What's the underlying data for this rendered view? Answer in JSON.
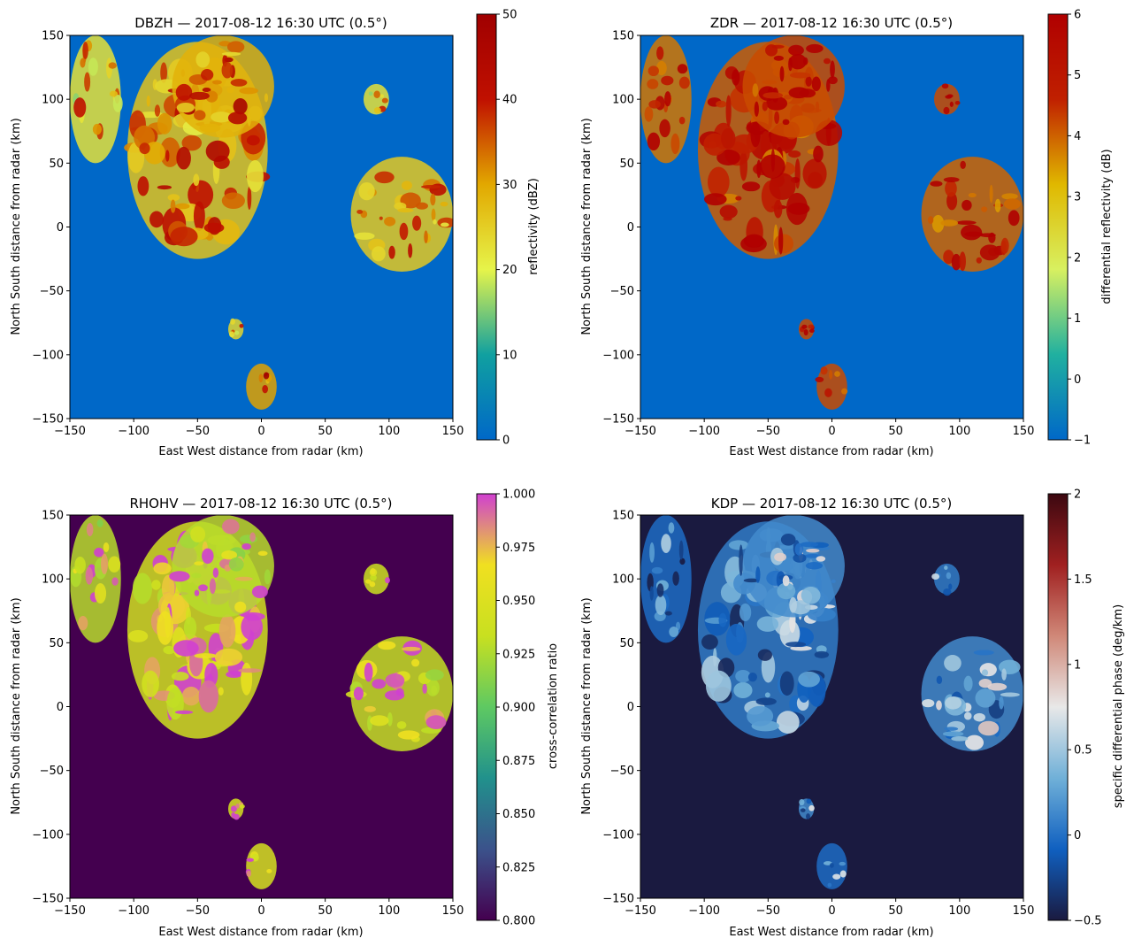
{
  "figure": {
    "background": "#ffffff"
  },
  "chart_data": [
    {
      "type": "heatmap",
      "field": "DBZH",
      "title": "DBZH — 2017-08-12 16:30 UTC (0.5°)",
      "xlabel": "East West distance from radar (km)",
      "ylabel": "North South distance from radar (km)",
      "xlim": [
        -150,
        150
      ],
      "ylim": [
        -150,
        150
      ],
      "xticks": [
        -150,
        -100,
        -50,
        0,
        50,
        100,
        150
      ],
      "yticks": [
        -150,
        -100,
        -50,
        0,
        50,
        100,
        150
      ],
      "colorbar": {
        "label": "reflectivity (dBZ)",
        "range": [
          0,
          50
        ],
        "ticks": [
          0,
          10,
          20,
          30,
          40,
          50
        ],
        "colors": [
          "#0068c8",
          "#10a0a0",
          "#e6f44a",
          "#e2a800",
          "#c01000",
          "#a00000"
        ]
      },
      "background_color": "#0068c8",
      "echoes": [
        {
          "x": -50,
          "y": 60,
          "rx": 55,
          "ry": 85,
          "value": 33
        },
        {
          "x": -30,
          "y": 110,
          "rx": 40,
          "ry": 40,
          "value": 36
        },
        {
          "x": -130,
          "y": 100,
          "rx": 20,
          "ry": 50,
          "value": 28
        },
        {
          "x": 110,
          "y": 10,
          "rx": 40,
          "ry": 45,
          "value": 32
        },
        {
          "x": 0,
          "y": -125,
          "rx": 12,
          "ry": 18,
          "value": 38
        },
        {
          "x": -20,
          "y": -80,
          "rx": 6,
          "ry": 8,
          "value": 30
        },
        {
          "x": 90,
          "y": 100,
          "rx": 10,
          "ry": 12,
          "value": 28
        }
      ]
    },
    {
      "type": "heatmap",
      "field": "ZDR",
      "title": "ZDR — 2017-08-12 16:30 UTC (0.5°)",
      "xlabel": "East West distance from radar (km)",
      "ylabel": "North South distance from radar (km)",
      "xlim": [
        -150,
        150
      ],
      "ylim": [
        -150,
        150
      ],
      "xticks": [
        -150,
        -100,
        -50,
        0,
        50,
        100,
        150
      ],
      "yticks": [
        -150,
        -100,
        -50,
        0,
        50,
        100,
        150
      ],
      "colorbar": {
        "label": "differential reflectivity (dB)",
        "range": [
          -1,
          6
        ],
        "ticks": [
          -1,
          0,
          1,
          2,
          3,
          4,
          5,
          6
        ],
        "colors": [
          "#0068c8",
          "#20b0a0",
          "#d8f060",
          "#e0b800",
          "#c02000",
          "#b00000"
        ]
      },
      "background_color": "#0068c8",
      "echoes": [
        {
          "x": -50,
          "y": 60,
          "rx": 55,
          "ry": 85,
          "value": 5.3
        },
        {
          "x": -30,
          "y": 110,
          "rx": 40,
          "ry": 40,
          "value": 5.5
        },
        {
          "x": -130,
          "y": 100,
          "rx": 20,
          "ry": 50,
          "value": 5.0
        },
        {
          "x": 110,
          "y": 10,
          "rx": 40,
          "ry": 45,
          "value": 5.2
        },
        {
          "x": 0,
          "y": -125,
          "rx": 12,
          "ry": 18,
          "value": 5.5
        },
        {
          "x": -20,
          "y": -80,
          "rx": 6,
          "ry": 8,
          "value": 5.5
        },
        {
          "x": 90,
          "y": 100,
          "rx": 10,
          "ry": 12,
          "value": 5.5
        }
      ]
    },
    {
      "type": "heatmap",
      "field": "RHOHV",
      "title": "RHOHV — 2017-08-12 16:30 UTC (0.5°)",
      "xlabel": "East West distance from radar (km)",
      "ylabel": "North South distance from radar (km)",
      "xlim": [
        -150,
        150
      ],
      "ylim": [
        -150,
        150
      ],
      "xticks": [
        -150,
        -100,
        -50,
        0,
        50,
        100,
        150
      ],
      "yticks": [
        -150,
        -100,
        -50,
        0,
        50,
        100,
        150
      ],
      "colorbar": {
        "label": "cross-correlation ratio",
        "range": [
          0.8,
          1.0
        ],
        "ticks": [
          0.8,
          0.825,
          0.85,
          0.875,
          0.9,
          0.925,
          0.95,
          0.975,
          1.0
        ],
        "tick_labels": [
          "0.800",
          "0.825",
          "0.850",
          "0.875",
          "0.900",
          "0.925",
          "0.950",
          "0.975",
          "1.000"
        ],
        "colors": [
          "#44004f",
          "#3b528b",
          "#21918c",
          "#5ec962",
          "#c8e020",
          "#f0e020",
          "#d040d0"
        ]
      },
      "background_color": "#44004f",
      "echoes": [
        {
          "x": -50,
          "y": 60,
          "rx": 55,
          "ry": 85,
          "value": 0.975
        },
        {
          "x": -30,
          "y": 110,
          "rx": 40,
          "ry": 40,
          "value": 0.96
        },
        {
          "x": -130,
          "y": 100,
          "rx": 20,
          "ry": 50,
          "value": 0.96
        },
        {
          "x": 110,
          "y": 10,
          "rx": 40,
          "ry": 45,
          "value": 0.965
        },
        {
          "x": 0,
          "y": -125,
          "rx": 12,
          "ry": 18,
          "value": 0.98
        },
        {
          "x": -20,
          "y": -80,
          "rx": 6,
          "ry": 8,
          "value": 0.98
        },
        {
          "x": 90,
          "y": 100,
          "rx": 10,
          "ry": 12,
          "value": 0.97
        }
      ]
    },
    {
      "type": "heatmap",
      "field": "KDP",
      "title": "KDP — 2017-08-12 16:30 UTC (0.5°)",
      "xlabel": "East West distance from radar (km)",
      "ylabel": "North South distance from radar (km)",
      "xlim": [
        -150,
        150
      ],
      "ylim": [
        -150,
        150
      ],
      "xticks": [
        -150,
        -100,
        -50,
        0,
        50,
        100,
        150
      ],
      "yticks": [
        -150,
        -100,
        -50,
        0,
        50,
        100,
        150
      ],
      "colorbar": {
        "label": "specific differential phase (deg/km)",
        "range": [
          -0.5,
          2.0
        ],
        "ticks": [
          -0.5,
          0.0,
          0.5,
          1.0,
          1.5,
          2.0
        ],
        "colors": [
          "#1a1a40",
          "#1060c0",
          "#70b0d8",
          "#e8e8e8",
          "#d08878",
          "#a02020",
          "#3c0810"
        ]
      },
      "background_color": "#1a1a40",
      "echoes": [
        {
          "x": -50,
          "y": 60,
          "rx": 55,
          "ry": 85,
          "value": 0.2
        },
        {
          "x": -30,
          "y": 110,
          "rx": 40,
          "ry": 40,
          "value": 0.3
        },
        {
          "x": -130,
          "y": 100,
          "rx": 20,
          "ry": 50,
          "value": 0.1
        },
        {
          "x": 110,
          "y": 10,
          "rx": 40,
          "ry": 45,
          "value": 0.3
        },
        {
          "x": 0,
          "y": -125,
          "rx": 12,
          "ry": 18,
          "value": 0.1
        },
        {
          "x": -20,
          "y": -80,
          "rx": 6,
          "ry": 8,
          "value": 0.3
        },
        {
          "x": 90,
          "y": 100,
          "rx": 10,
          "ry": 12,
          "value": 0.2
        }
      ]
    }
  ]
}
